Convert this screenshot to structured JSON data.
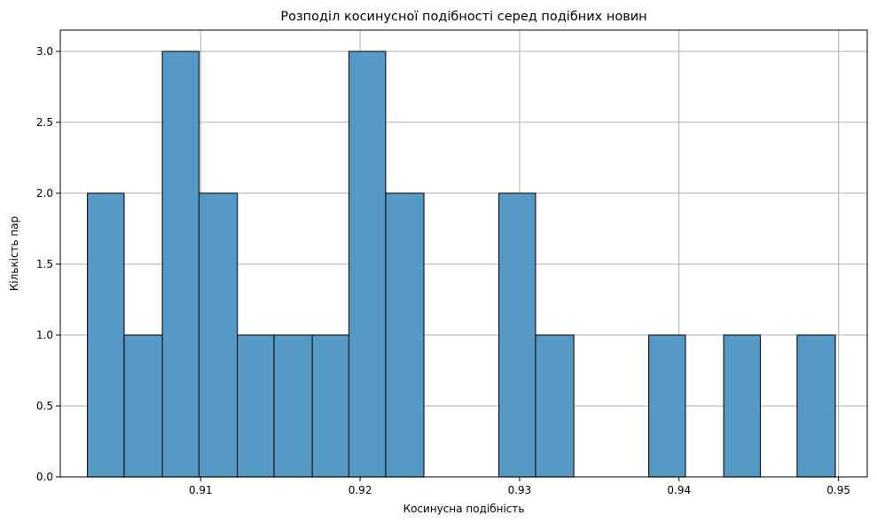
{
  "chart_data": {
    "type": "bar",
    "title": "Розподіл косинусної подібності серед подібних новин",
    "xlabel": "Косинусна подібність",
    "ylabel": "Кількість пар",
    "xlim": [
      0.9012,
      0.9518
    ],
    "ylim": [
      0,
      3.15
    ],
    "grid": true,
    "bin_width": 0.002345,
    "bins": [
      {
        "x0": 0.9029,
        "x1": 0.9052,
        "count": 2
      },
      {
        "x0": 0.9052,
        "x1": 0.9076,
        "count": 1
      },
      {
        "x0": 0.9076,
        "x1": 0.9099,
        "count": 3
      },
      {
        "x0": 0.9099,
        "x1": 0.9123,
        "count": 2
      },
      {
        "x0": 0.9123,
        "x1": 0.9146,
        "count": 1
      },
      {
        "x0": 0.9146,
        "x1": 0.917,
        "count": 1
      },
      {
        "x0": 0.917,
        "x1": 0.9193,
        "count": 1
      },
      {
        "x0": 0.9193,
        "x1": 0.9216,
        "count": 3
      },
      {
        "x0": 0.9216,
        "x1": 0.924,
        "count": 2
      },
      {
        "x0": 0.9287,
        "x1": 0.931,
        "count": 2
      },
      {
        "x0": 0.931,
        "x1": 0.9334,
        "count": 1
      },
      {
        "x0": 0.9381,
        "x1": 0.9404,
        "count": 1
      },
      {
        "x0": 0.9428,
        "x1": 0.9451,
        "count": 1
      },
      {
        "x0": 0.9474,
        "x1": 0.9498,
        "count": 1
      }
    ],
    "x_ticks": [
      0.91,
      0.92,
      0.93,
      0.94,
      0.95
    ],
    "x_tick_labels": [
      "0.91",
      "0.92",
      "0.93",
      "0.94",
      "0.95"
    ],
    "y_ticks": [
      0.0,
      0.5,
      1.0,
      1.5,
      2.0,
      2.5,
      3.0
    ],
    "y_tick_labels": [
      "0.0",
      "0.5",
      "1.0",
      "1.5",
      "2.0",
      "2.5",
      "3.0"
    ],
    "bar_color": "#5599c7",
    "edge_color": "#1a1a1a",
    "grid_color": "#b0b0b0"
  }
}
